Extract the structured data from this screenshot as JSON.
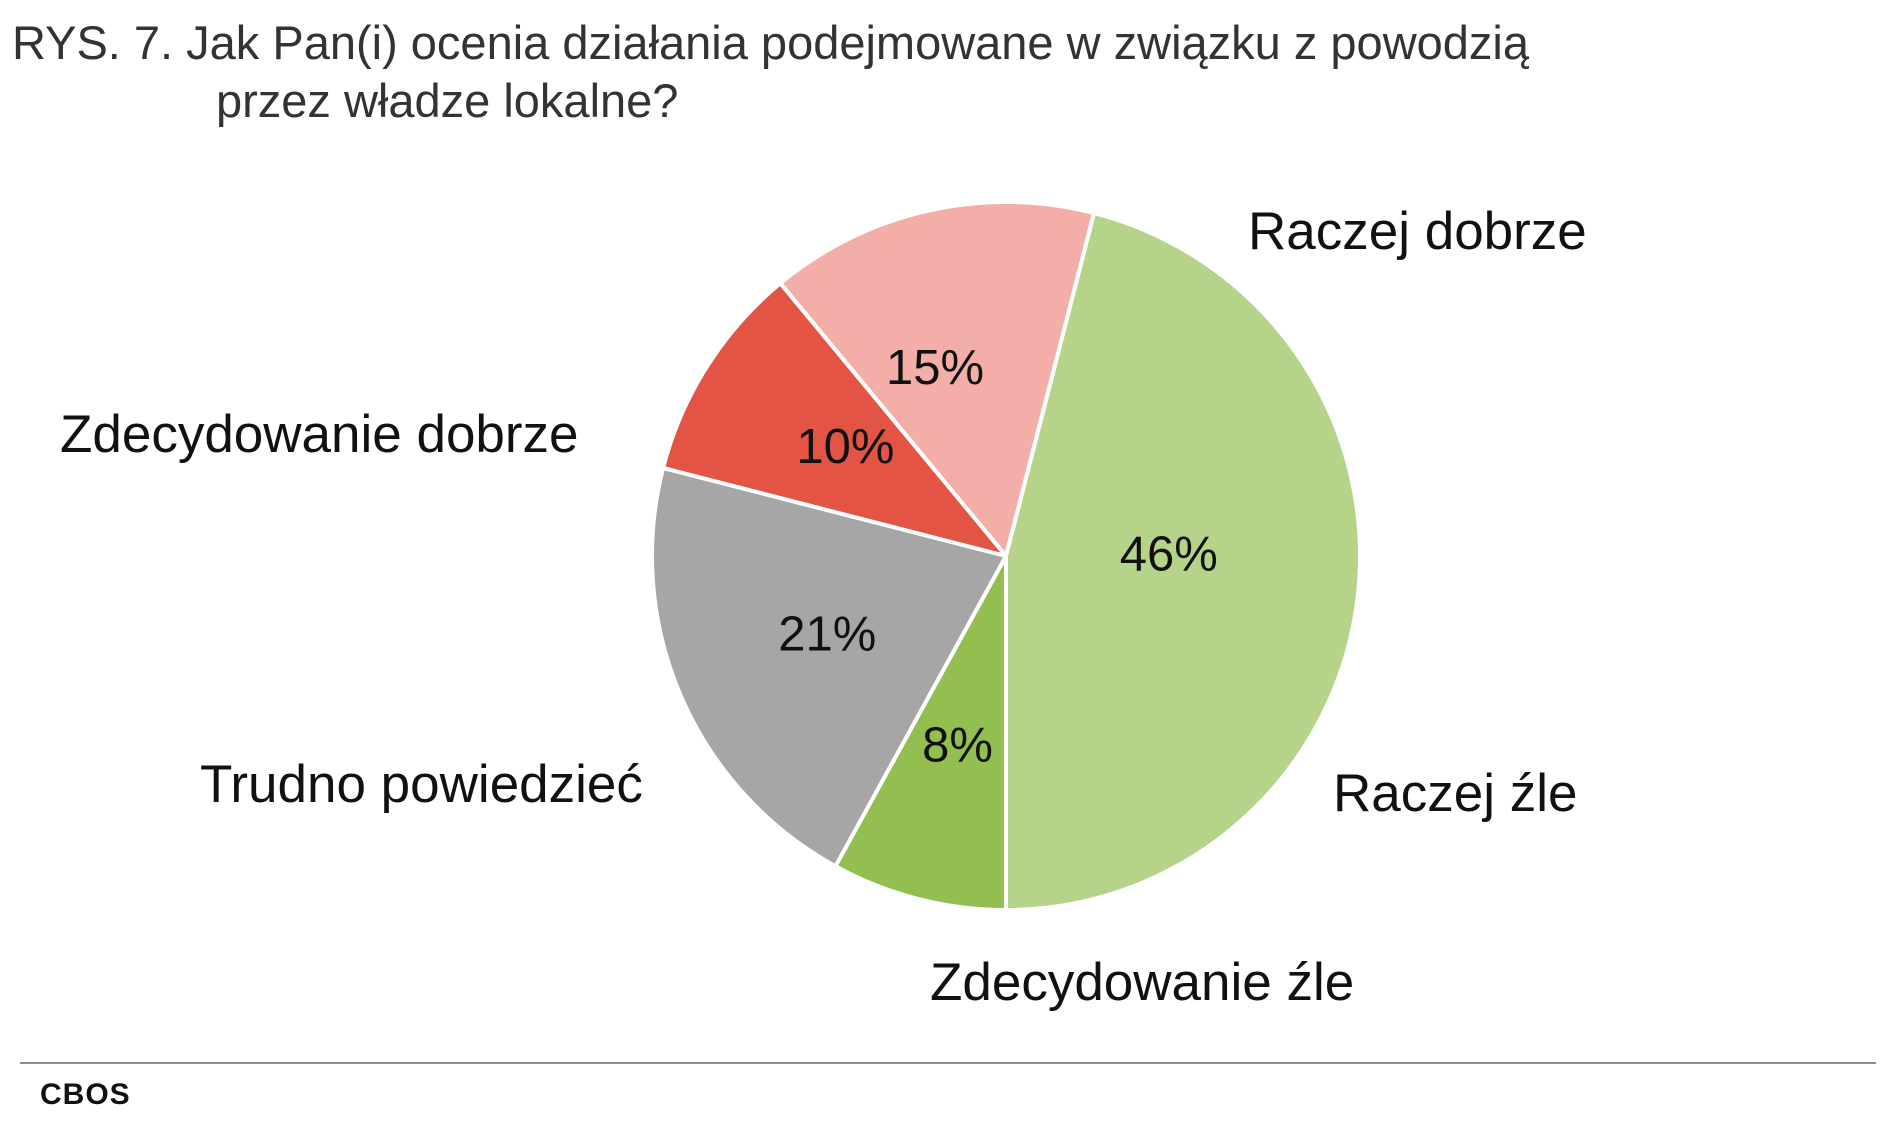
{
  "title": {
    "line1": "RYS. 7. Jak Pan(i) ocenia działania podejmowane w związku z powodzią",
    "line2": "przez władze lokalne?"
  },
  "source": "CBOS",
  "chart_data": {
    "type": "pie",
    "title": "RYS. 7. Jak Pan(i) ocenia działania podejmowane w związku z powodzią przez władze lokalne?",
    "start_angle_deg": 270,
    "direction": "counterclockwise",
    "slices": [
      {
        "label": "Zdecydowanie dobrze",
        "value": 8,
        "value_label": "8%",
        "color": "#92bf50"
      },
      {
        "label": "Trudno powiedzieć",
        "value": 21,
        "value_label": "21%",
        "color": "#a6a6a6"
      },
      {
        "label": "Zdecydowanie źle",
        "value": 10,
        "value_label": "10%",
        "color": "#e35444"
      },
      {
        "label": "Raczej źle",
        "value": 15,
        "value_label": "15%",
        "color": "#f3aea8"
      },
      {
        "label": "Raczej dobrze",
        "value": 46,
        "value_label": "46%",
        "color": "#b5d48a"
      }
    ]
  }
}
